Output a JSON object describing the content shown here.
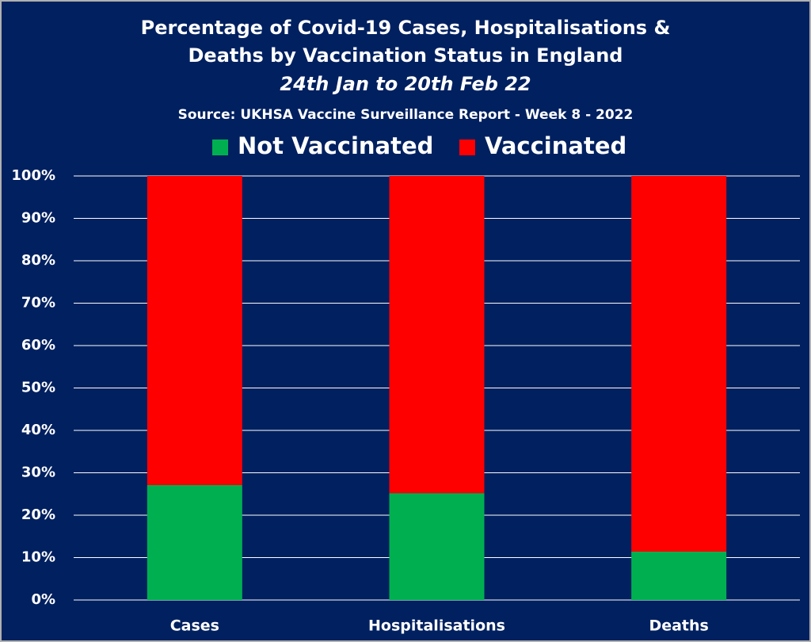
{
  "chart_data": {
    "type": "stacked_bar",
    "title": [
      "Percentage of Covid-19 Cases, Hospitalisations &",
      "Deaths by Vaccination Status in England"
    ],
    "subtitle": "24th Jan to 20th Feb 22",
    "source": "Source: UKHSA Vaccine Surveillance Report - Week 8 - 2022",
    "categories": [
      "Cases",
      "Hospitalisations",
      "Deaths"
    ],
    "series": [
      {
        "name": "Not Vaccinated",
        "color": "#00b050",
        "values": [
          27.1,
          25.2,
          11.4
        ]
      },
      {
        "name": "Vaccinated",
        "color": "#ff0000",
        "values": [
          72.9,
          74.8,
          88.6
        ]
      }
    ],
    "ylim": [
      0,
      100
    ],
    "yticks": [
      {
        "value": 0,
        "label": "0%"
      },
      {
        "value": 10,
        "label": "10%"
      },
      {
        "value": 20,
        "label": "20%"
      },
      {
        "value": 30,
        "label": "30%"
      },
      {
        "value": 40,
        "label": "40%"
      },
      {
        "value": 50,
        "label": "50%"
      },
      {
        "value": 60,
        "label": "60%"
      },
      {
        "value": 70,
        "label": "70%"
      },
      {
        "value": 80,
        "label": "80%"
      },
      {
        "value": 90,
        "label": "90%"
      },
      {
        "value": 100,
        "label": "100%"
      }
    ],
    "grid": true
  }
}
